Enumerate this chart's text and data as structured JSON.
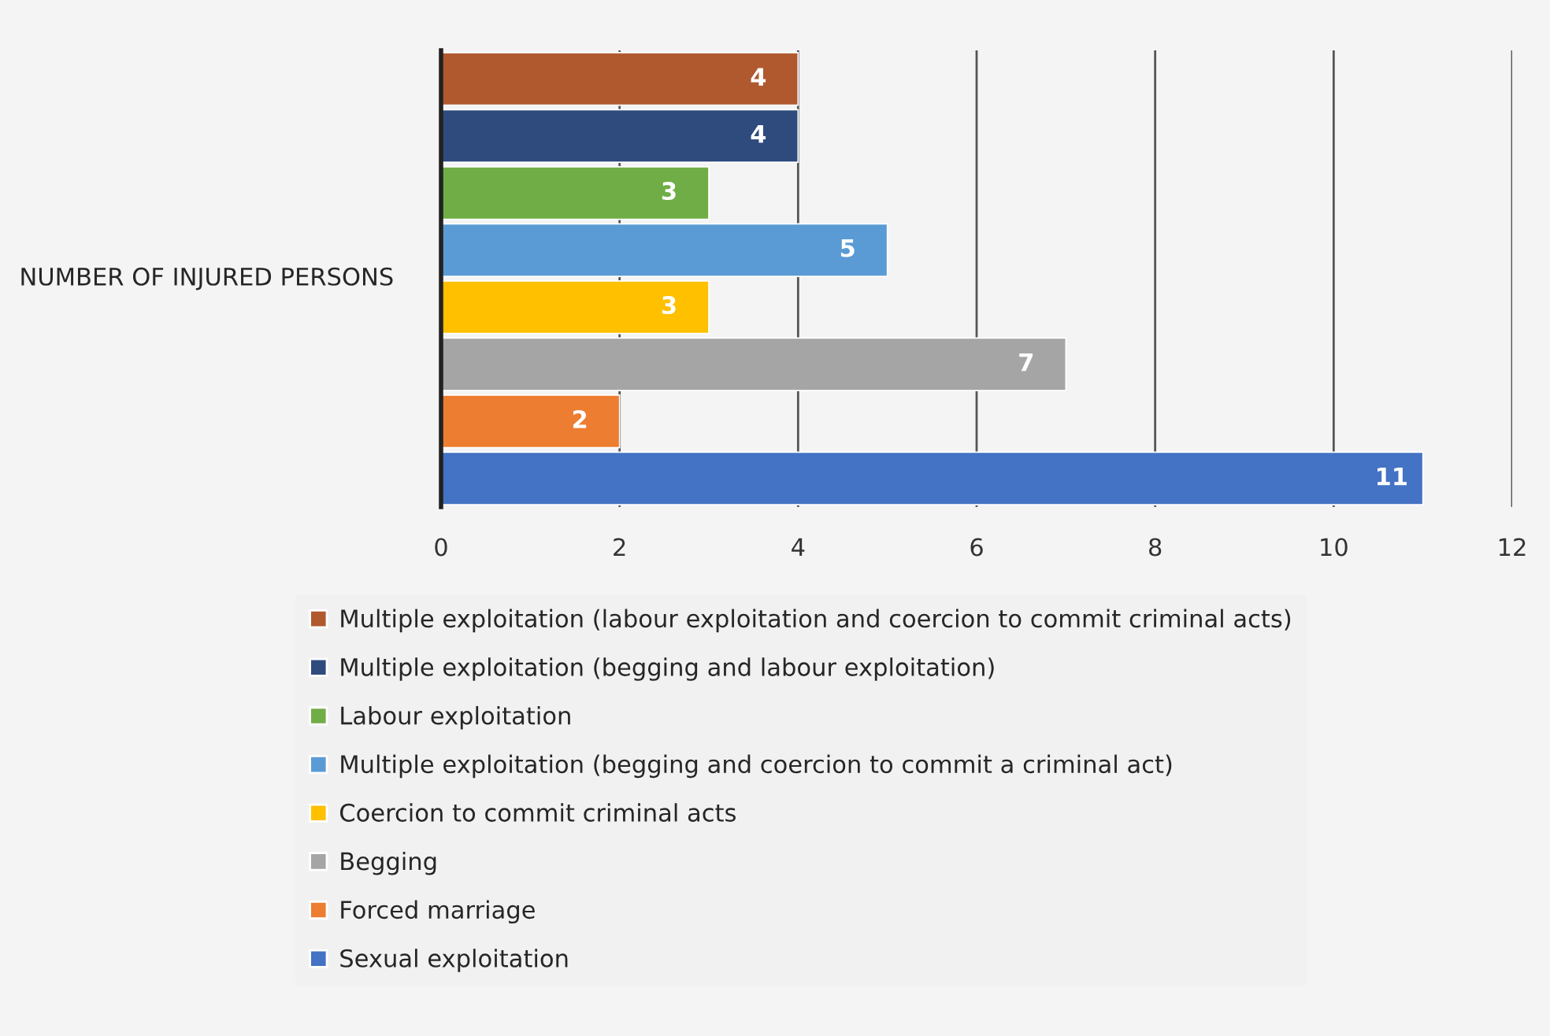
{
  "chart_data": {
    "type": "bar",
    "orientation": "horizontal",
    "ylabel": "NUMBER OF INJURED PERSONS",
    "categories": [
      null,
      null,
      null,
      null,
      null,
      null,
      null,
      null
    ],
    "series": [
      {
        "name": "Multiple exploitation (labour exploitation and coercion to commit criminal acts)",
        "color": "#b0592f",
        "values": [
          4,
          null,
          null,
          null,
          null,
          null,
          null,
          null
        ]
      },
      {
        "name": "Multiple exploitation (begging and labour exploitation)",
        "color": "#2f4b7e",
        "values": [
          null,
          4,
          null,
          null,
          null,
          null,
          null,
          null
        ]
      },
      {
        "name": "Labour exploitation",
        "color": "#70ad47",
        "values": [
          null,
          null,
          3,
          null,
          null,
          null,
          null,
          null
        ]
      },
      {
        "name": "Multiple exploitation (begging and coercion to commit a criminal act)",
        "color": "#5b9bd5",
        "values": [
          null,
          null,
          null,
          5,
          null,
          null,
          null,
          null
        ]
      },
      {
        "name": "Coercion to commit criminal acts",
        "color": "#ffc000",
        "values": [
          null,
          null,
          null,
          null,
          3,
          null,
          null,
          null
        ]
      },
      {
        "name": "Begging",
        "color": "#a5a5a5",
        "values": [
          null,
          null,
          null,
          null,
          null,
          7,
          null,
          null
        ]
      },
      {
        "name": "Forced marriage",
        "color": "#ed7d31",
        "values": [
          null,
          null,
          null,
          null,
          null,
          null,
          2,
          null
        ]
      },
      {
        "name": "Sexual exploitation",
        "color": "#4472c4",
        "values": [
          null,
          null,
          null,
          null,
          null,
          null,
          null,
          11
        ]
      }
    ],
    "xlim": [
      0,
      12
    ],
    "xticks": [
      0,
      2,
      4,
      6,
      8,
      10,
      12
    ],
    "grid": "x",
    "legend": "bottom",
    "data_labels": true
  }
}
